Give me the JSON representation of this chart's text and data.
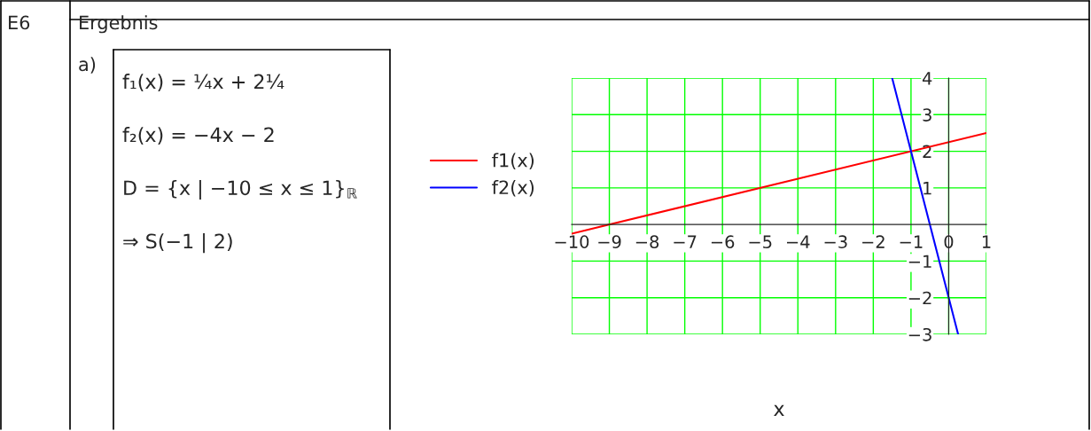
{
  "chart_data": {
    "type": "line",
    "xlabel": "x",
    "annotations": [
      "E6",
      "Ergebnis",
      "a)",
      "f₁(x) = ¼x + 2¼",
      "f₂(x) = −4x − 2",
      "D = {x | −10 ≤ x ≤ 1}$_{ℝ}$",
      "⇒ S(−1 | 2)"
    ],
    "series": [
      {
        "name": "f1(x)",
        "color": "#ff0000",
        "x": [
          -10,
          1
        ],
        "values": [
          -0.25,
          2.5
        ]
      },
      {
        "name": "f2(x)",
        "color": "#0000ff",
        "x": [
          -1.5,
          0.25
        ],
        "values": [
          4,
          -3
        ]
      }
    ],
    "xlim": [
      -10,
      1
    ],
    "ylim": [
      -3,
      4
    ],
    "xticks": [
      -10,
      -9,
      -8,
      -7,
      -6,
      -5,
      -4,
      -3,
      -2,
      -1,
      0,
      1
    ],
    "yticks": [
      -3,
      -2,
      -1,
      1,
      2,
      3,
      4
    ],
    "grid": true,
    "legend": "left",
    "line_style": "solid",
    "marker": "none"
  }
}
